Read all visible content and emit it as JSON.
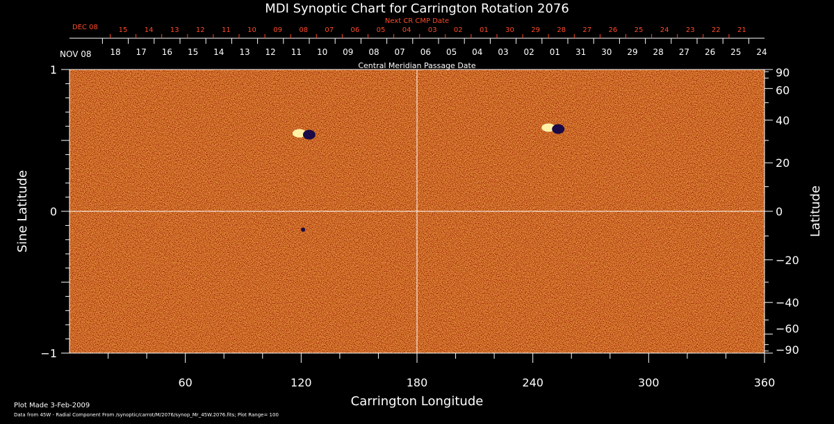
{
  "chart_data": {
    "type": "heatmap",
    "title": "MDI Synoptic Chart for Carrington Rotation 2076",
    "xlabel": "Carrington Longitude",
    "ylabel_left": "Sine Latitude",
    "ylabel_right": "Latitude",
    "xlim": [
      0,
      360
    ],
    "ylim": [
      -1,
      1
    ],
    "x_ticks": [
      "60",
      "120",
      "180",
      "240",
      "300",
      "360"
    ],
    "y_ticks_left": [
      "1",
      "0",
      "−1"
    ],
    "y_ticks_right": [
      "90",
      "60",
      "40",
      "20",
      "0",
      "−20",
      "−40",
      "−60",
      "−90"
    ],
    "y_ticks_right_values": [
      90,
      60,
      40,
      20,
      0,
      -20,
      -40,
      -60,
      -90
    ],
    "grid_lines": {
      "longitude": 180,
      "sine_latitude": 0
    },
    "cmp_axis_label": "Central Meridian Passage Date",
    "cmp_start_label": "NOV 08",
    "cmp_dates": [
      "18",
      "17",
      "16",
      "15",
      "14",
      "13",
      "12",
      "11",
      "10",
      "09",
      "08",
      "07",
      "06",
      "05",
      "04",
      "03",
      "02",
      "01",
      "31",
      "30",
      "29",
      "28",
      "27",
      "26",
      "25",
      "24"
    ],
    "next_cr_label": "Next CR CMP Date",
    "next_cr_start_label": "DEC 08",
    "next_cr_dates": [
      "15",
      "14",
      "13",
      "12",
      "11",
      "10",
      "09",
      "08",
      "07",
      "06",
      "05",
      "04",
      "03",
      "02",
      "01",
      "30",
      "29",
      "28",
      "27",
      "26",
      "25",
      "24",
      "23",
      "22",
      "21"
    ],
    "active_regions": [
      {
        "longitude": 122,
        "sine_latitude": 0.55
      },
      {
        "longitude": 251,
        "sine_latitude": 0.59
      },
      {
        "longitude": 121,
        "sine_latitude": -0.13
      }
    ],
    "colors": {
      "background_field": "#e8461c",
      "positive": "#fff2a8",
      "negative": "#1a0a45",
      "red_scale": "#ff4a2a"
    }
  },
  "footer": {
    "plot_made": "Plot Made  3-Feb-2009",
    "source": "Data from 45W - Radial Component From /synoptic/carrot/M/2076/synop_Mr_45W.2076.fits; Plot Range=  100"
  }
}
